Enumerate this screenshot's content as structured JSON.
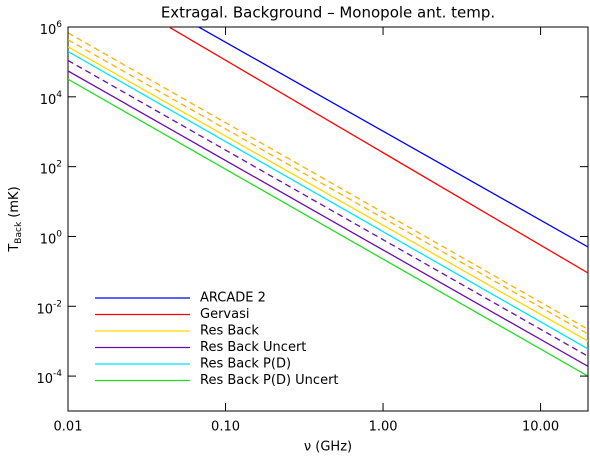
{
  "chart_data": {
    "type": "line",
    "title": "Extragal. Background – Monopole ant. temp.",
    "x_label": "ν (GHz)",
    "y_label": "T_Back (mK)",
    "x_log": true,
    "y_log": true,
    "xlim": [
      0.01,
      20
    ],
    "ylim": [
      1e-05,
      1000000
    ],
    "xticks": [
      0.01,
      {
        "value": 0.1,
        "label": "0.10"
      },
      {
        "value": 1,
        "label": "1.00"
      },
      {
        "value": 10,
        "label": "10.00"
      }
    ],
    "yticks": [
      {
        "value": 0.0001,
        "label": "10^-4"
      },
      {
        "value": 0.01,
        "label": "10^-2"
      },
      {
        "value": 1,
        "label": "10^0"
      },
      {
        "value": 100,
        "label": "10^2"
      },
      {
        "value": 10000,
        "label": "10^4"
      },
      {
        "value": 1000000,
        "label": "10^6"
      }
    ],
    "legend": "bottom-left",
    "x": [
      0.01,
      20
    ],
    "series": [
      {
        "name": "ARCADE 2",
        "color": "#0000ff",
        "values": [
          130000000,
          0.5
        ]
      },
      {
        "name": "Gervasi",
        "color": "#ff0000",
        "values": [
          50000000,
          0.09
        ]
      },
      {
        "name": "Res Back",
        "color": "#ffd700",
        "values": [
          270000,
          0.001
        ]
      },
      {
        "name": "Res Back Uncert",
        "color": "#6a0dad",
        "values": [
          55000,
          0.00019
        ]
      },
      {
        "name": "Res Back P(D)",
        "color": "#00e5ff",
        "values": [
          200000,
          0.0006
        ]
      },
      {
        "name": "Res Back P(D) Uncert",
        "color": "#22dd22",
        "values": [
          32000,
          0.0001
        ]
      },
      {
        "color": "#ffb000",
        "dash": true,
        "values": [
          680000,
          0.0022
        ]
      },
      {
        "color": "#ffb000",
        "dash": true,
        "values": [
          430000,
          0.0016
        ]
      },
      {
        "color": "#6a0dad",
        "dash": true,
        "values": [
          110000,
          0.00037
        ]
      }
    ]
  }
}
